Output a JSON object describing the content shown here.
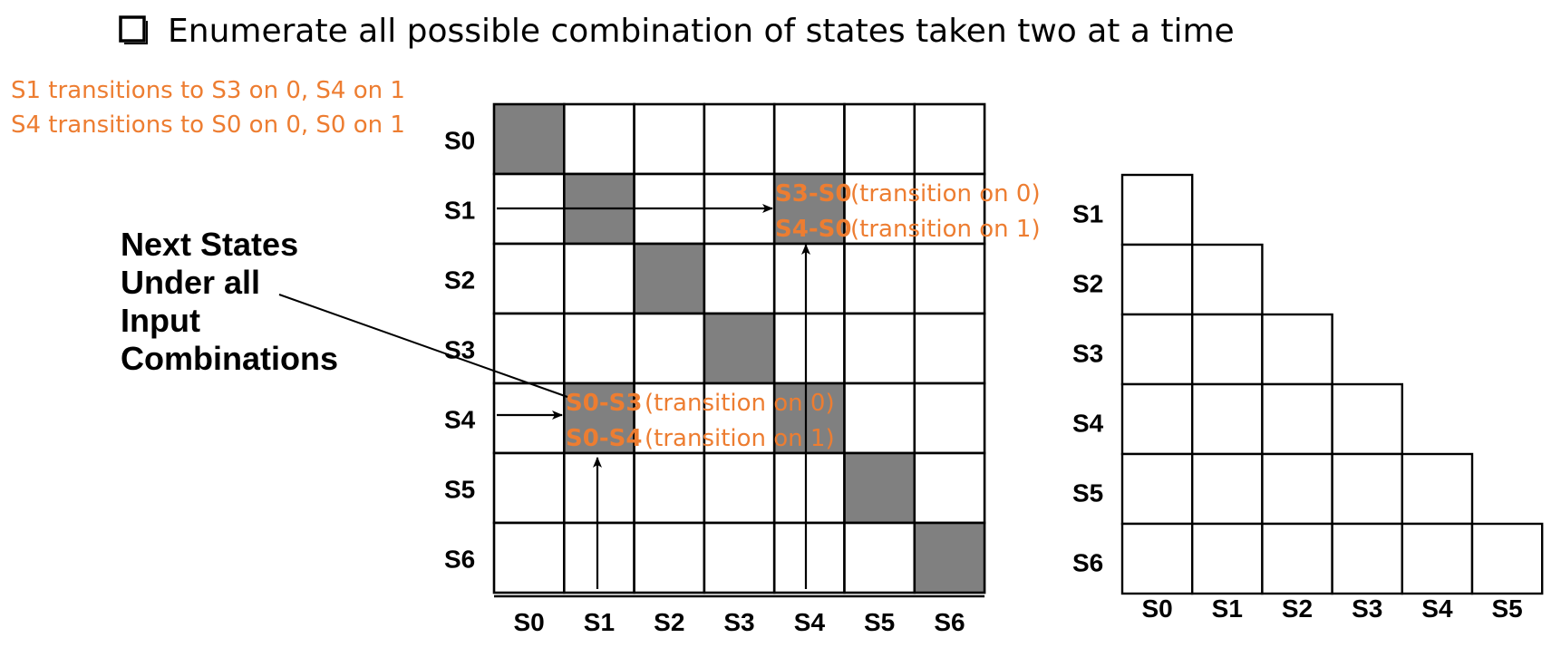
{
  "heading": "Enumerate all possible combination of states taken two at a time",
  "notes": [
    "S1 transitions to S3 on 0, S4 on 1",
    "S4 transitions to S0 on 0, S0 on 1"
  ],
  "side_label": [
    "Next States",
    "Under all",
    "Input",
    "Combinations"
  ],
  "full_table": {
    "row_labels": [
      "S0",
      "S1",
      "S2",
      "S3",
      "S4",
      "S5",
      "S6"
    ],
    "col_labels": [
      "S0",
      "S1",
      "S2",
      "S3",
      "S4",
      "S5",
      "S6"
    ],
    "cell_s1_s4": {
      "pair0": "S3-S0",
      "text0": "(transition on 0)",
      "pair1": "S4-S0",
      "text1": "(transition on 1)"
    },
    "cell_s4_s1": {
      "pair0": "S0-S3",
      "text0": "(transition on 0)",
      "pair1": "S0-S4",
      "text1": "(transition on 1)"
    }
  },
  "half_table": {
    "row_labels": [
      "S1",
      "S2",
      "S3",
      "S4",
      "S5",
      "S6"
    ],
    "col_labels": [
      "S0",
      "S1",
      "S2",
      "S3",
      "S4",
      "S5"
    ]
  },
  "colors": {
    "accent": "#ED7D31",
    "shaded": "#808080"
  }
}
